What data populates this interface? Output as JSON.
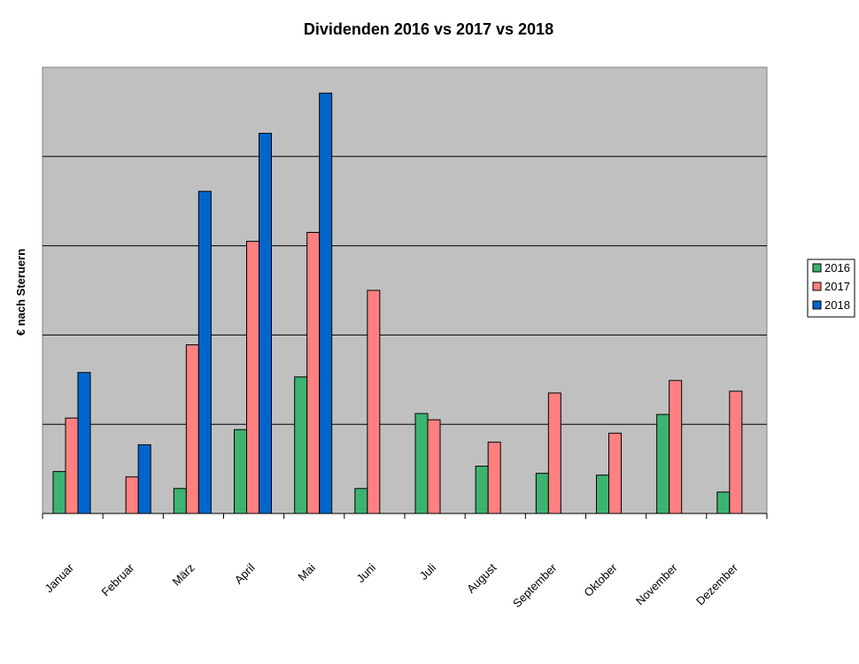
{
  "chart_data": {
    "type": "bar",
    "title": "Dividenden 2016 vs 2017 vs 2018",
    "xlabel": "",
    "ylabel": "€ nach Steruern",
    "ylim": [
      0,
      500
    ],
    "y_grid_step": 100,
    "y_tick_labels_shown": false,
    "grid": true,
    "legend_position": "right",
    "categories": [
      "Januar",
      "Februar",
      "März",
      "April",
      "Mai",
      "Juni",
      "Juli",
      "August",
      "September",
      "Oktober",
      "November",
      "Dezember"
    ],
    "series": [
      {
        "name": "2016",
        "color": "#3cb371",
        "values": [
          47,
          0,
          28,
          94,
          153,
          28,
          112,
          53,
          45,
          43,
          111,
          24
        ]
      },
      {
        "name": "2017",
        "color": "#ff8080",
        "values": [
          107,
          41,
          189,
          305,
          315,
          250,
          105,
          80,
          135,
          90,
          149,
          137
        ]
      },
      {
        "name": "2018",
        "color": "#0066cc",
        "values": [
          158,
          77,
          361,
          426,
          471,
          0,
          0,
          0,
          0,
          0,
          0,
          0
        ]
      }
    ],
    "colors": {
      "plot_background": "#c0c0c0",
      "gridline": "#000000",
      "bar_outline": "#000000"
    }
  }
}
